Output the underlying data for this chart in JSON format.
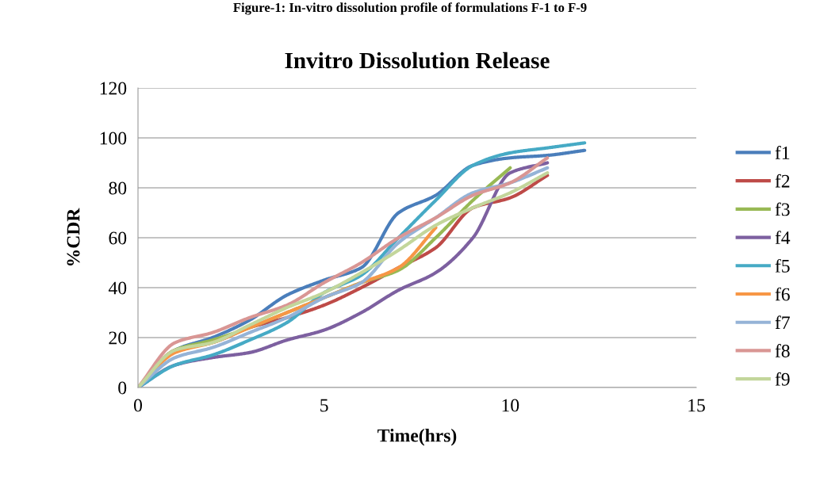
{
  "chart_data": {
    "type": "line",
    "title": "Invitro Dissolution Release",
    "xlabel": "Time(hrs)",
    "ylabel": "%CDR",
    "annotations": [
      "Figure-1: In-vitro dissolution profile of formulations F-1 to F-9"
    ],
    "x": [
      0,
      1,
      2,
      3,
      4,
      5,
      6,
      7,
      8,
      9,
      10,
      11,
      12
    ],
    "series": [
      {
        "name": "f1",
        "color": "#4a7ebb",
        "values": [
          0,
          15,
          20,
          27,
          37,
          43,
          48,
          70,
          77,
          89,
          92,
          93,
          95
        ]
      },
      {
        "name": "f2",
        "color": "#be4b48",
        "values": [
          0,
          15,
          18,
          24,
          28,
          33,
          40,
          48,
          56,
          72,
          76,
          85,
          null
        ]
      },
      {
        "name": "f3",
        "color": "#98b954",
        "values": [
          0,
          15,
          19,
          24,
          30,
          36,
          42,
          47,
          60,
          75,
          88,
          null,
          null
        ]
      },
      {
        "name": "f4",
        "color": "#7d60a0",
        "values": [
          0,
          9,
          12,
          14,
          19,
          23,
          30,
          39,
          46,
          60,
          86,
          90,
          null
        ]
      },
      {
        "name": "f5",
        "color": "#46aac5",
        "values": [
          0,
          9,
          13,
          19,
          26,
          38,
          45,
          60,
          75,
          89,
          94,
          96,
          98
        ]
      },
      {
        "name": "f6",
        "color": "#f79646",
        "values": [
          0,
          14,
          18,
          24,
          30,
          36,
          42,
          48,
          64,
          null,
          null,
          null,
          null
        ]
      },
      {
        "name": "f7",
        "color": "#95b3d7",
        "values": [
          0,
          12,
          16,
          22,
          28,
          36,
          42,
          58,
          68,
          78,
          82,
          88,
          null
        ]
      },
      {
        "name": "f8",
        "color": "#d99694",
        "values": [
          0,
          18,
          22,
          28,
          33,
          42,
          50,
          60,
          68,
          77,
          82,
          92,
          null
        ]
      },
      {
        "name": "f9",
        "color": "#c3d69b",
        "values": [
          0,
          15,
          18,
          25,
          32,
          38,
          46,
          55,
          65,
          72,
          78,
          86,
          null
        ]
      }
    ],
    "xlim": [
      0,
      15
    ],
    "xticks": [
      0,
      5,
      10,
      15
    ],
    "ylim": [
      0,
      120
    ],
    "yticks": [
      0,
      20,
      40,
      60,
      80,
      100,
      120
    ],
    "grid": "y",
    "legend": "right",
    "marker": "none",
    "line_style": "solid"
  }
}
